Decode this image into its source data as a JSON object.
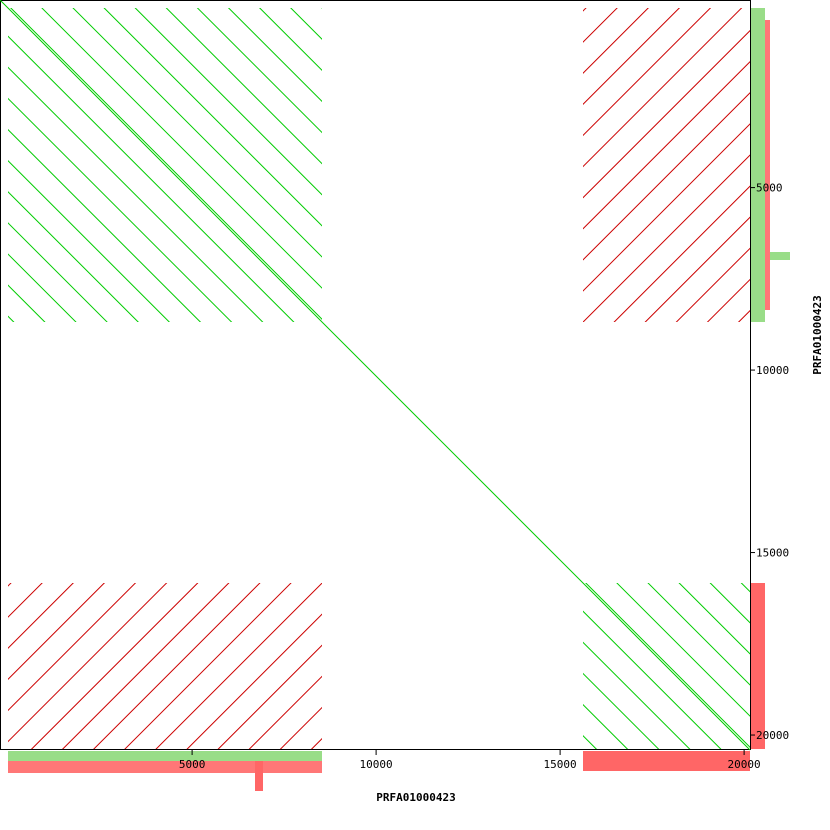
{
  "chart_data": {
    "type": "dotplot",
    "xlabel": "PRFA01000423",
    "ylabel": "PRFA01000423",
    "xlim": [
      -220,
      20160
    ],
    "ylim": [
      -140,
      20410
    ],
    "xticks": [
      5000,
      10000,
      15000,
      20000
    ],
    "yticks": [
      5000,
      10000,
      15000,
      20000
    ],
    "forward_color": "#00cc00",
    "reverse_color": "#cc0000"
  }
}
